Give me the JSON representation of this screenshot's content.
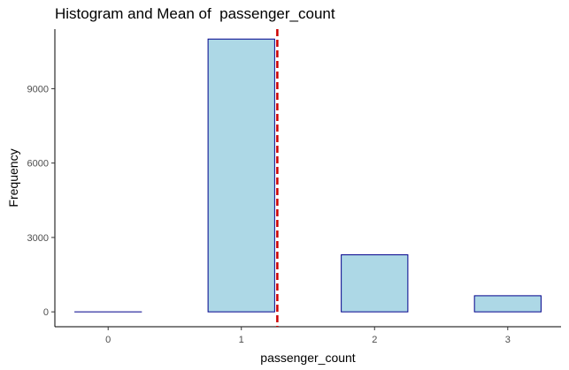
{
  "chart_data": {
    "type": "bar",
    "title": "Histogram and Mean of  passenger_count",
    "xlabel": "passenger_count",
    "ylabel": "Frequency",
    "bins": [
      {
        "center": 0,
        "count": 0
      },
      {
        "center": 1,
        "count": 11000
      },
      {
        "center": 2,
        "count": 2300
      },
      {
        "center": 3,
        "count": 650
      }
    ],
    "bin_width": 0.5,
    "mean": 1.27,
    "xlim": [
      -0.4,
      3.4
    ],
    "ylim": [
      -600,
      11400
    ],
    "x_ticks": [
      0,
      1,
      2,
      3
    ],
    "y_ticks": [
      0,
      3000,
      6000,
      9000
    ],
    "grid": false,
    "colors": {
      "bar_fill": "#add8e6",
      "bar_stroke": "#00008b",
      "mean_line": "#cc0000",
      "axis": "#000000"
    }
  }
}
